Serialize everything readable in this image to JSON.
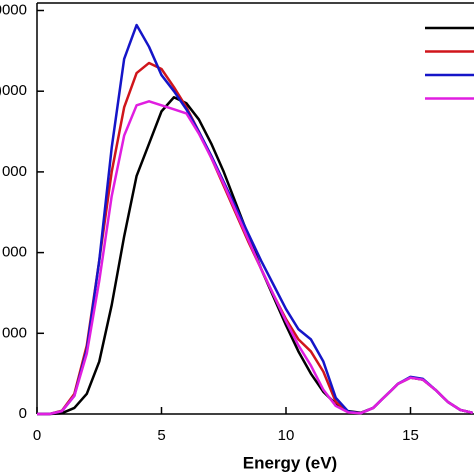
{
  "chart_data": {
    "type": "line",
    "x_label": "Energy (eV)",
    "x": [
      0,
      0.5,
      1,
      1.5,
      2,
      2.5,
      3,
      3.5,
      4,
      4.5,
      5,
      5.5,
      6,
      6.5,
      7,
      7.5,
      8,
      8.5,
      9,
      9.5,
      10,
      10.5,
      11,
      11.5,
      12,
      12.5,
      13,
      13.5,
      14,
      14.5,
      15,
      15.5,
      16,
      16.5,
      17,
      17.5
    ],
    "series": [
      {
        "color": "#000000",
        "values": [
          0,
          0,
          200,
          1500,
          5000,
          13000,
          27000,
          44000,
          59000,
          67000,
          75000,
          78500,
          77000,
          73000,
          67000,
          60000,
          52000,
          44000,
          36000,
          29000,
          22000,
          15500,
          10000,
          5500,
          2500,
          700,
          300,
          1500,
          4500,
          7500,
          9000,
          8500,
          6000,
          3000,
          1000,
          300
        ]
      },
      {
        "color": "#d0151b",
        "values": [
          0,
          0,
          800,
          5000,
          17000,
          38000,
          60000,
          76000,
          84500,
          87000,
          85500,
          81000,
          76000,
          70000,
          63500,
          56500,
          49500,
          42500,
          36000,
          29500,
          23500,
          18500,
          15500,
          10500,
          3000,
          500,
          200,
          1500,
          4500,
          7500,
          9000,
          8500,
          6000,
          3000,
          1000,
          300
        ]
      },
      {
        "color": "#1515c8",
        "values": [
          0,
          0,
          700,
          4500,
          16000,
          38000,
          66000,
          88000,
          96400,
          91000,
          84000,
          80000,
          75500,
          70000,
          64000,
          57500,
          51000,
          44500,
          38000,
          32000,
          26000,
          21000,
          18500,
          13000,
          4000,
          600,
          200,
          1500,
          4500,
          7500,
          9200,
          8700,
          6000,
          3000,
          1000,
          300
        ]
      },
      {
        "color": "#e01ee0",
        "values": [
          0,
          0,
          700,
          4500,
          15000,
          33000,
          54000,
          69000,
          76500,
          77500,
          76500,
          75500,
          74500,
          69500,
          63500,
          57000,
          50000,
          43000,
          36000,
          29500,
          23000,
          17000,
          12000,
          6000,
          2000,
          400,
          200,
          1500,
          4500,
          7500,
          9000,
          8500,
          6000,
          3000,
          1000,
          300
        ]
      }
    ],
    "xlim": [
      0,
      17.5
    ],
    "xticks": [
      0,
      5,
      10,
      15
    ],
    "ylim": [
      0,
      100000
    ],
    "yticks": [
      0,
      {
        "value": 20000,
        "label": "000"
      },
      {
        "value": 40000,
        "label": "000"
      },
      {
        "value": 60000,
        "label": "000"
      },
      {
        "value": 80000,
        "label": ")000"
      },
      {
        "value": 100000,
        "label": "0000"
      }
    ],
    "legend": "top-right"
  }
}
